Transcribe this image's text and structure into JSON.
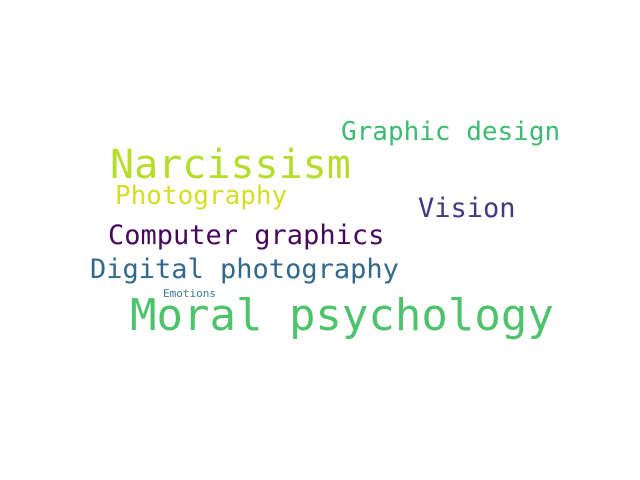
{
  "words": [
    {
      "text": "Graphic design",
      "color": "#3dbb74"
    },
    {
      "text": "Narcissism",
      "color": "#b5dd2b"
    },
    {
      "text": "Photography",
      "color": "#d3df26"
    },
    {
      "text": "Vision",
      "color": "#453781"
    },
    {
      "text": "Computer graphics",
      "color": "#46085c"
    },
    {
      "text": "Digital photography",
      "color": "#31688e"
    },
    {
      "text": "Emotions",
      "color": "#3a7b9a"
    },
    {
      "text": "Moral psychology",
      "color": "#4ec36b"
    }
  ]
}
